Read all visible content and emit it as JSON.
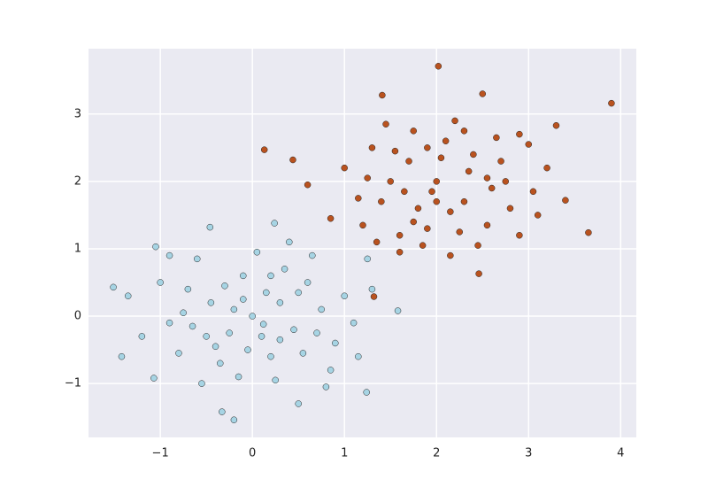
{
  "chart_data": {
    "type": "scatter",
    "xlim": [
      -1.78,
      4.17
    ],
    "ylim": [
      -1.8,
      3.97
    ],
    "xticks": [
      {
        "value": -1,
        "label": "−1"
      },
      0,
      1,
      2,
      3,
      4
    ],
    "yticks": [
      {
        "value": -1,
        "label": "−1"
      },
      0,
      1,
      2,
      3
    ],
    "grid": true,
    "marker_edge_color": "#222222",
    "series": [
      {
        "color": "#a6d4e4",
        "x": [
          -1.51,
          -0.33,
          1.58,
          1.24,
          -0.46,
          0.24,
          -1.07,
          -0.2,
          1.25,
          -1.35,
          -1.42,
          -1.05,
          0.8,
          1.15,
          0.5,
          0.1,
          -0.2,
          0.3,
          -0.5,
          0.6,
          -0.7,
          0.2,
          -0.1,
          0.45,
          -0.35,
          0.75,
          -0.9,
          0.05,
          0.9,
          -0.6,
          0.35,
          -0.25,
          0.15,
          -0.45,
          0.55,
          -0.8,
          1.0,
          -0.15,
          0.65,
          -1.0,
          0.0,
          0.25,
          -0.55,
          1.1,
          -1.2,
          0.4,
          -0.3,
          0.85,
          -0.65,
          0.12,
          -0.05,
          0.5,
          -0.9,
          0.7,
          1.3,
          -0.4,
          0.3,
          -0.1,
          0.2,
          -0.75
        ],
        "y": [
          0.43,
          -1.42,
          0.08,
          -1.13,
          1.32,
          1.38,
          -0.92,
          -1.54,
          0.85,
          0.3,
          -0.6,
          1.03,
          -1.05,
          -0.6,
          -1.3,
          -0.3,
          0.1,
          0.2,
          -0.3,
          0.5,
          0.4,
          -0.6,
          0.6,
          -0.2,
          -0.7,
          0.1,
          -0.1,
          0.95,
          -0.4,
          0.85,
          0.7,
          -0.25,
          0.35,
          0.2,
          -0.55,
          -0.55,
          0.3,
          -0.9,
          0.9,
          0.5,
          0.0,
          -0.95,
          -1.0,
          -0.1,
          -0.3,
          1.1,
          0.45,
          -0.8,
          -0.15,
          -0.12,
          -0.5,
          0.35,
          0.9,
          -0.25,
          0.4,
          -0.45,
          -0.35,
          0.25,
          0.6,
          0.05
        ]
      },
      {
        "color": "#b9521f",
        "x": [
          2.02,
          3.9,
          0.13,
          3.65,
          1.32,
          2.46,
          0.44,
          3.3,
          1.41,
          0.6,
          3.4,
          0.85,
          1.0,
          2.5,
          3.0,
          2.9,
          1.6,
          2.15,
          1.2,
          3.2,
          2.0,
          1.7,
          2.3,
          1.8,
          2.4,
          1.5,
          2.6,
          2.1,
          1.9,
          2.7,
          1.4,
          2.2,
          1.3,
          2.8,
          1.75,
          2.55,
          1.6,
          2.35,
          1.95,
          2.05,
          1.55,
          2.65,
          1.85,
          2.25,
          2.75,
          1.25,
          3.05,
          1.45,
          2.45,
          1.15,
          2.9,
          2.15,
          1.65,
          2.55,
          1.9,
          2.3,
          1.75,
          3.1,
          1.35,
          2.0
        ],
        "y": [
          3.71,
          3.16,
          2.47,
          1.24,
          0.29,
          0.63,
          2.32,
          2.83,
          3.28,
          1.95,
          1.72,
          1.45,
          2.2,
          3.3,
          2.55,
          1.2,
          0.95,
          0.9,
          1.35,
          2.2,
          2.0,
          2.3,
          1.7,
          1.6,
          2.4,
          2.0,
          1.9,
          2.6,
          1.3,
          2.3,
          1.7,
          2.9,
          2.5,
          1.6,
          2.75,
          1.35,
          1.2,
          2.15,
          1.85,
          2.35,
          2.45,
          2.65,
          1.05,
          1.25,
          2.0,
          2.05,
          1.85,
          2.85,
          1.05,
          1.75,
          2.7,
          1.55,
          1.85,
          2.05,
          2.5,
          2.75,
          1.4,
          1.5,
          1.1,
          1.7
        ]
      }
    ]
  }
}
